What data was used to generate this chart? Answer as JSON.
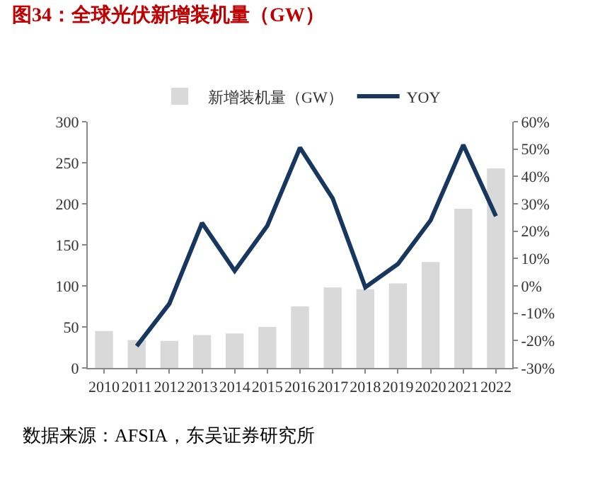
{
  "chart_data": {
    "type": "bar",
    "title": "图34：全球光伏新增装机量（GW）",
    "categories": [
      "2010",
      "2011",
      "2012",
      "2013",
      "2014",
      "2015",
      "2016",
      "2017",
      "2018",
      "2019",
      "2020",
      "2021",
      "2022"
    ],
    "series": [
      {
        "name": "新增装机量（GW）",
        "color": "#d9d9d9",
        "values": [
          45,
          34,
          33,
          40,
          42,
          50,
          75,
          98,
          96,
          103,
          129,
          194,
          243
        ]
      },
      {
        "name": "YOY",
        "type": "line",
        "axis": "y2",
        "color": "#17375e",
        "values": [
          null,
          -22,
          -6.5,
          23,
          5.5,
          22,
          50.5,
          32,
          -0.5,
          8,
          24,
          51.5,
          25.5
        ]
      }
    ],
    "ylim": [
      0,
      300
    ],
    "yticks": [
      0,
      50,
      100,
      150,
      200,
      250,
      300
    ],
    "y2lim": [
      -30,
      60
    ],
    "y2ticks": [
      {
        "value": -30,
        "label": "-30%"
      },
      {
        "value": -20,
        "label": "-20%"
      },
      {
        "value": -10,
        "label": "-10%"
      },
      {
        "value": 0,
        "label": "0%"
      },
      {
        "value": 10,
        "label": "10%"
      },
      {
        "value": 20,
        "label": "20%"
      },
      {
        "value": 30,
        "label": "30%"
      },
      {
        "value": 40,
        "label": "40%"
      },
      {
        "value": 50,
        "label": "50%"
      },
      {
        "value": 60,
        "label": "60%"
      }
    ],
    "legend": "top",
    "grid": false,
    "marker": "none",
    "line_style": "solid",
    "annotations": [
      "数据来源：AFSIA，东吴证券研究所"
    ]
  }
}
